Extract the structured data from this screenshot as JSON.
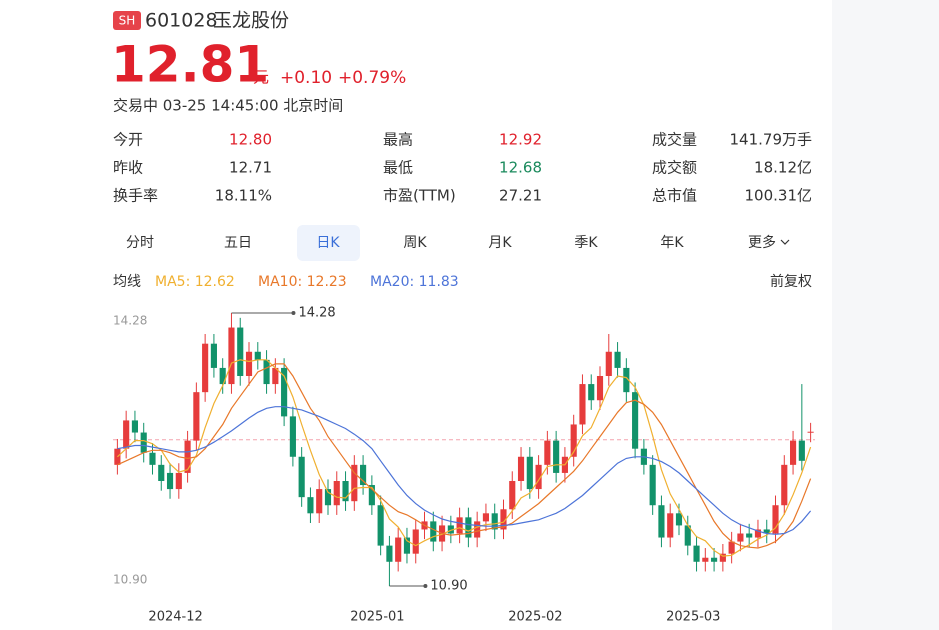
{
  "header": {
    "market": "SH",
    "code": "601028",
    "name": "玉龙股份"
  },
  "quote": {
    "price": "12.81",
    "unit": "元",
    "change": "+0.10",
    "change_pct": "+0.79%",
    "status": "交易中 03-25 14:45:00 北京时间"
  },
  "stats": [
    {
      "label": "今开",
      "value": "12.80",
      "color": "#e0212c"
    },
    {
      "label": "最高",
      "value": "12.92",
      "color": "#e0212c"
    },
    {
      "label": "成交量",
      "value": "141.79万手",
      "color": "#333333"
    },
    {
      "label": "昨收",
      "value": "12.71",
      "color": "#333333"
    },
    {
      "label": "最低",
      "value": "12.68",
      "color": "#1a8a5c"
    },
    {
      "label": "成交额",
      "value": "18.12亿",
      "color": "#333333"
    },
    {
      "label": "换手率",
      "value": "18.11%",
      "color": "#333333"
    },
    {
      "label": "市盈(TTM)",
      "value": "27.21",
      "color": "#333333"
    },
    {
      "label": "总市值",
      "value": "100.31亿",
      "color": "#333333"
    }
  ],
  "tabs": [
    "分时",
    "五日",
    "日K",
    "周K",
    "月K",
    "季K",
    "年K",
    "更多"
  ],
  "active_tab": 2,
  "legend": {
    "title": "均线",
    "adjust": "前复权"
  },
  "chart_data": {
    "type": "candlestick",
    "categories": [
      null,
      null,
      null,
      null,
      null,
      null,
      null,
      null,
      "2024-12",
      null,
      null,
      null,
      null,
      null,
      null,
      null,
      null,
      null,
      null,
      null,
      null,
      null,
      null,
      null,
      null,
      null,
      null,
      null,
      null,
      null,
      null,
      "2025-01",
      null,
      null,
      null,
      null,
      null,
      null,
      null,
      null,
      null,
      null,
      null,
      null,
      null,
      null,
      null,
      null,
      null,
      "2025-02",
      null,
      null,
      null,
      null,
      null,
      null,
      null,
      null,
      null,
      null,
      null,
      null,
      null,
      null,
      null,
      null,
      null,
      "2025-03",
      null,
      null,
      null,
      null,
      null,
      null,
      null,
      null,
      null,
      null,
      null,
      null
    ],
    "open": [
      12.4,
      12.6,
      12.95,
      12.8,
      12.55,
      12.4,
      12.3,
      12.1,
      12.3,
      12.7,
      13.3,
      13.9,
      13.6,
      13.4,
      14.1,
      13.5,
      13.8,
      13.7,
      13.4,
      13.6,
      13.0,
      12.5,
      12.0,
      11.8,
      12.1,
      11.9,
      12.2,
      11.95,
      12.4,
      12.15,
      11.9,
      11.4,
      11.2,
      11.5,
      11.3,
      11.6,
      11.7,
      11.45,
      11.65,
      11.55,
      11.75,
      11.5,
      11.7,
      11.8,
      11.6,
      11.85,
      12.2,
      12.5,
      12.1,
      12.4,
      12.7,
      12.3,
      12.5,
      12.9,
      13.4,
      13.2,
      13.5,
      13.8,
      13.6,
      13.3,
      12.6,
      12.4,
      11.9,
      11.5,
      11.8,
      11.65,
      11.4,
      11.2,
      11.25,
      11.2,
      11.3,
      11.45,
      11.55,
      11.5,
      11.6,
      11.55,
      11.9,
      12.4,
      12.7,
      12.8
    ],
    "high": [
      12.72,
      13.07,
      13.07,
      12.92,
      12.67,
      12.52,
      12.42,
      12.42,
      12.82,
      13.42,
      14.02,
      14.02,
      13.72,
      14.28,
      14.22,
      13.92,
      13.92,
      13.82,
      13.72,
      13.72,
      13.12,
      12.62,
      12.12,
      12.22,
      12.22,
      12.32,
      12.32,
      12.52,
      12.52,
      12.27,
      12.02,
      11.52,
      11.62,
      11.62,
      11.72,
      11.82,
      11.82,
      11.77,
      11.77,
      11.87,
      11.87,
      11.82,
      11.92,
      11.92,
      11.97,
      12.32,
      12.62,
      12.62,
      12.52,
      12.82,
      12.82,
      12.62,
      13.02,
      13.52,
      13.52,
      13.62,
      14.02,
      13.92,
      13.72,
      13.42,
      12.72,
      12.52,
      12.02,
      11.92,
      11.92,
      11.77,
      11.52,
      11.37,
      11.37,
      11.42,
      11.57,
      11.67,
      11.67,
      11.72,
      11.72,
      12.02,
      12.52,
      12.82,
      13.4,
      12.92
    ],
    "low": [
      12.28,
      12.48,
      12.68,
      12.43,
      12.28,
      12.08,
      11.98,
      11.98,
      12.18,
      12.58,
      13.18,
      13.48,
      13.28,
      13.28,
      13.38,
      13.38,
      13.58,
      13.28,
      13.28,
      12.88,
      12.38,
      11.88,
      11.68,
      11.68,
      11.78,
      11.78,
      11.83,
      11.83,
      12.03,
      11.78,
      11.28,
      10.9,
      11.08,
      11.18,
      11.18,
      11.48,
      11.33,
      11.33,
      11.43,
      11.43,
      11.38,
      11.38,
      11.58,
      11.48,
      11.48,
      11.73,
      12.08,
      11.98,
      11.98,
      12.28,
      12.18,
      12.18,
      12.38,
      12.78,
      13.08,
      13.08,
      13.38,
      13.48,
      13.18,
      12.48,
      12.28,
      11.78,
      11.38,
      11.38,
      11.53,
      11.28,
      11.08,
      11.08,
      11.08,
      11.08,
      11.18,
      11.33,
      11.38,
      11.38,
      11.43,
      11.43,
      11.78,
      12.28,
      12.33,
      12.68
    ],
    "close": [
      12.6,
      12.95,
      12.8,
      12.55,
      12.4,
      12.2,
      12.1,
      12.3,
      12.7,
      13.3,
      13.9,
      13.6,
      13.4,
      14.1,
      13.5,
      13.8,
      13.7,
      13.4,
      13.6,
      13.0,
      12.5,
      12.0,
      11.8,
      12.1,
      11.9,
      12.2,
      11.95,
      12.4,
      12.15,
      11.9,
      11.4,
      11.2,
      11.5,
      11.3,
      11.6,
      11.7,
      11.45,
      11.65,
      11.55,
      11.75,
      11.5,
      11.7,
      11.8,
      11.6,
      11.85,
      12.2,
      12.5,
      12.1,
      12.4,
      12.7,
      12.3,
      12.5,
      12.9,
      13.4,
      13.2,
      13.5,
      13.8,
      13.6,
      13.3,
      12.6,
      12.4,
      11.9,
      11.5,
      11.8,
      11.65,
      11.4,
      11.2,
      11.25,
      11.2,
      11.3,
      11.45,
      11.55,
      11.5,
      11.6,
      11.55,
      11.9,
      12.4,
      12.7,
      12.45,
      12.81
    ],
    "up_color": "#e63c3c",
    "down_color": "#12926a",
    "series": [
      {
        "name": "MA5: 12.62",
        "color": "#f0b030",
        "values": [
          12.5,
          12.6,
          12.7,
          12.7,
          12.66,
          12.58,
          12.41,
          12.31,
          12.34,
          12.52,
          12.86,
          13.16,
          13.38,
          13.66,
          13.7,
          13.68,
          13.7,
          13.7,
          13.6,
          13.5,
          13.24,
          12.9,
          12.58,
          12.28,
          12.06,
          12.0,
          11.99,
          12.11,
          12.12,
          12.12,
          11.96,
          11.73,
          11.63,
          11.46,
          11.4,
          11.46,
          11.51,
          11.54,
          11.59,
          11.62,
          11.58,
          11.63,
          11.66,
          11.67,
          11.69,
          11.83,
          11.99,
          12.05,
          12.21,
          12.38,
          12.4,
          12.4,
          12.56,
          12.76,
          12.86,
          13.1,
          13.36,
          13.5,
          13.48,
          13.36,
          13.14,
          12.76,
          12.34,
          12.04,
          11.85,
          11.65,
          11.51,
          11.46,
          11.34,
          11.27,
          11.28,
          11.35,
          11.41,
          11.48,
          11.53,
          11.62,
          11.79,
          12.03,
          12.3,
          12.62
        ]
      },
      {
        "name": "MA10: 12.23",
        "color": "#e8782a",
        "values": [
          12.4,
          12.45,
          12.5,
          12.55,
          12.58,
          12.58,
          12.55,
          12.5,
          12.48,
          12.5,
          12.6,
          12.75,
          12.9,
          13.1,
          13.25,
          13.4,
          13.55,
          13.6,
          13.65,
          13.65,
          13.5,
          13.3,
          13.1,
          12.95,
          12.75,
          12.6,
          12.45,
          12.3,
          12.2,
          12.1,
          12.0,
          11.9,
          11.82,
          11.78,
          11.72,
          11.65,
          11.6,
          11.55,
          11.53,
          11.54,
          11.55,
          11.58,
          11.6,
          11.62,
          11.63,
          11.68,
          11.76,
          11.84,
          11.92,
          12.02,
          12.12,
          12.22,
          12.32,
          12.45,
          12.6,
          12.75,
          12.9,
          13.05,
          13.17,
          13.2,
          13.15,
          13.05,
          12.9,
          12.7,
          12.5,
          12.3,
          12.1,
          11.9,
          11.7,
          11.55,
          11.45,
          11.4,
          11.38,
          11.37,
          11.4,
          11.45,
          11.55,
          11.7,
          11.95,
          12.23
        ]
      },
      {
        "name": "MA20: 11.83",
        "color": "#4d74d8",
        "values": [
          12.6,
          12.62,
          12.64,
          12.64,
          12.62,
          12.6,
          12.58,
          12.56,
          12.56,
          12.58,
          12.62,
          12.68,
          12.75,
          12.82,
          12.9,
          12.98,
          13.05,
          13.1,
          13.12,
          13.12,
          13.1,
          13.08,
          13.04,
          13.0,
          12.95,
          12.9,
          12.85,
          12.78,
          12.7,
          12.6,
          12.45,
          12.3,
          12.15,
          12.02,
          11.92,
          11.84,
          11.78,
          11.73,
          11.7,
          11.68,
          11.66,
          11.65,
          11.64,
          11.64,
          11.65,
          11.66,
          11.68,
          11.7,
          11.72,
          11.76,
          11.8,
          11.86,
          11.94,
          12.02,
          12.12,
          12.22,
          12.32,
          12.42,
          12.48,
          12.5,
          12.5,
          12.48,
          12.44,
          12.38,
          12.3,
          12.2,
          12.1,
          12.0,
          11.9,
          11.8,
          11.72,
          11.66,
          11.62,
          11.58,
          11.55,
          11.54,
          11.55,
          11.6,
          11.7,
          11.83
        ]
      }
    ],
    "ylim": [
      10.9,
      14.28
    ],
    "yticks": [
      {
        "value": 10.9,
        "label": "10.90"
      },
      14.28
    ],
    "reference_line": 12.71,
    "high_marker": 14.28,
    "low_marker": {
      "value": 10.9,
      "label": "10.90"
    }
  }
}
